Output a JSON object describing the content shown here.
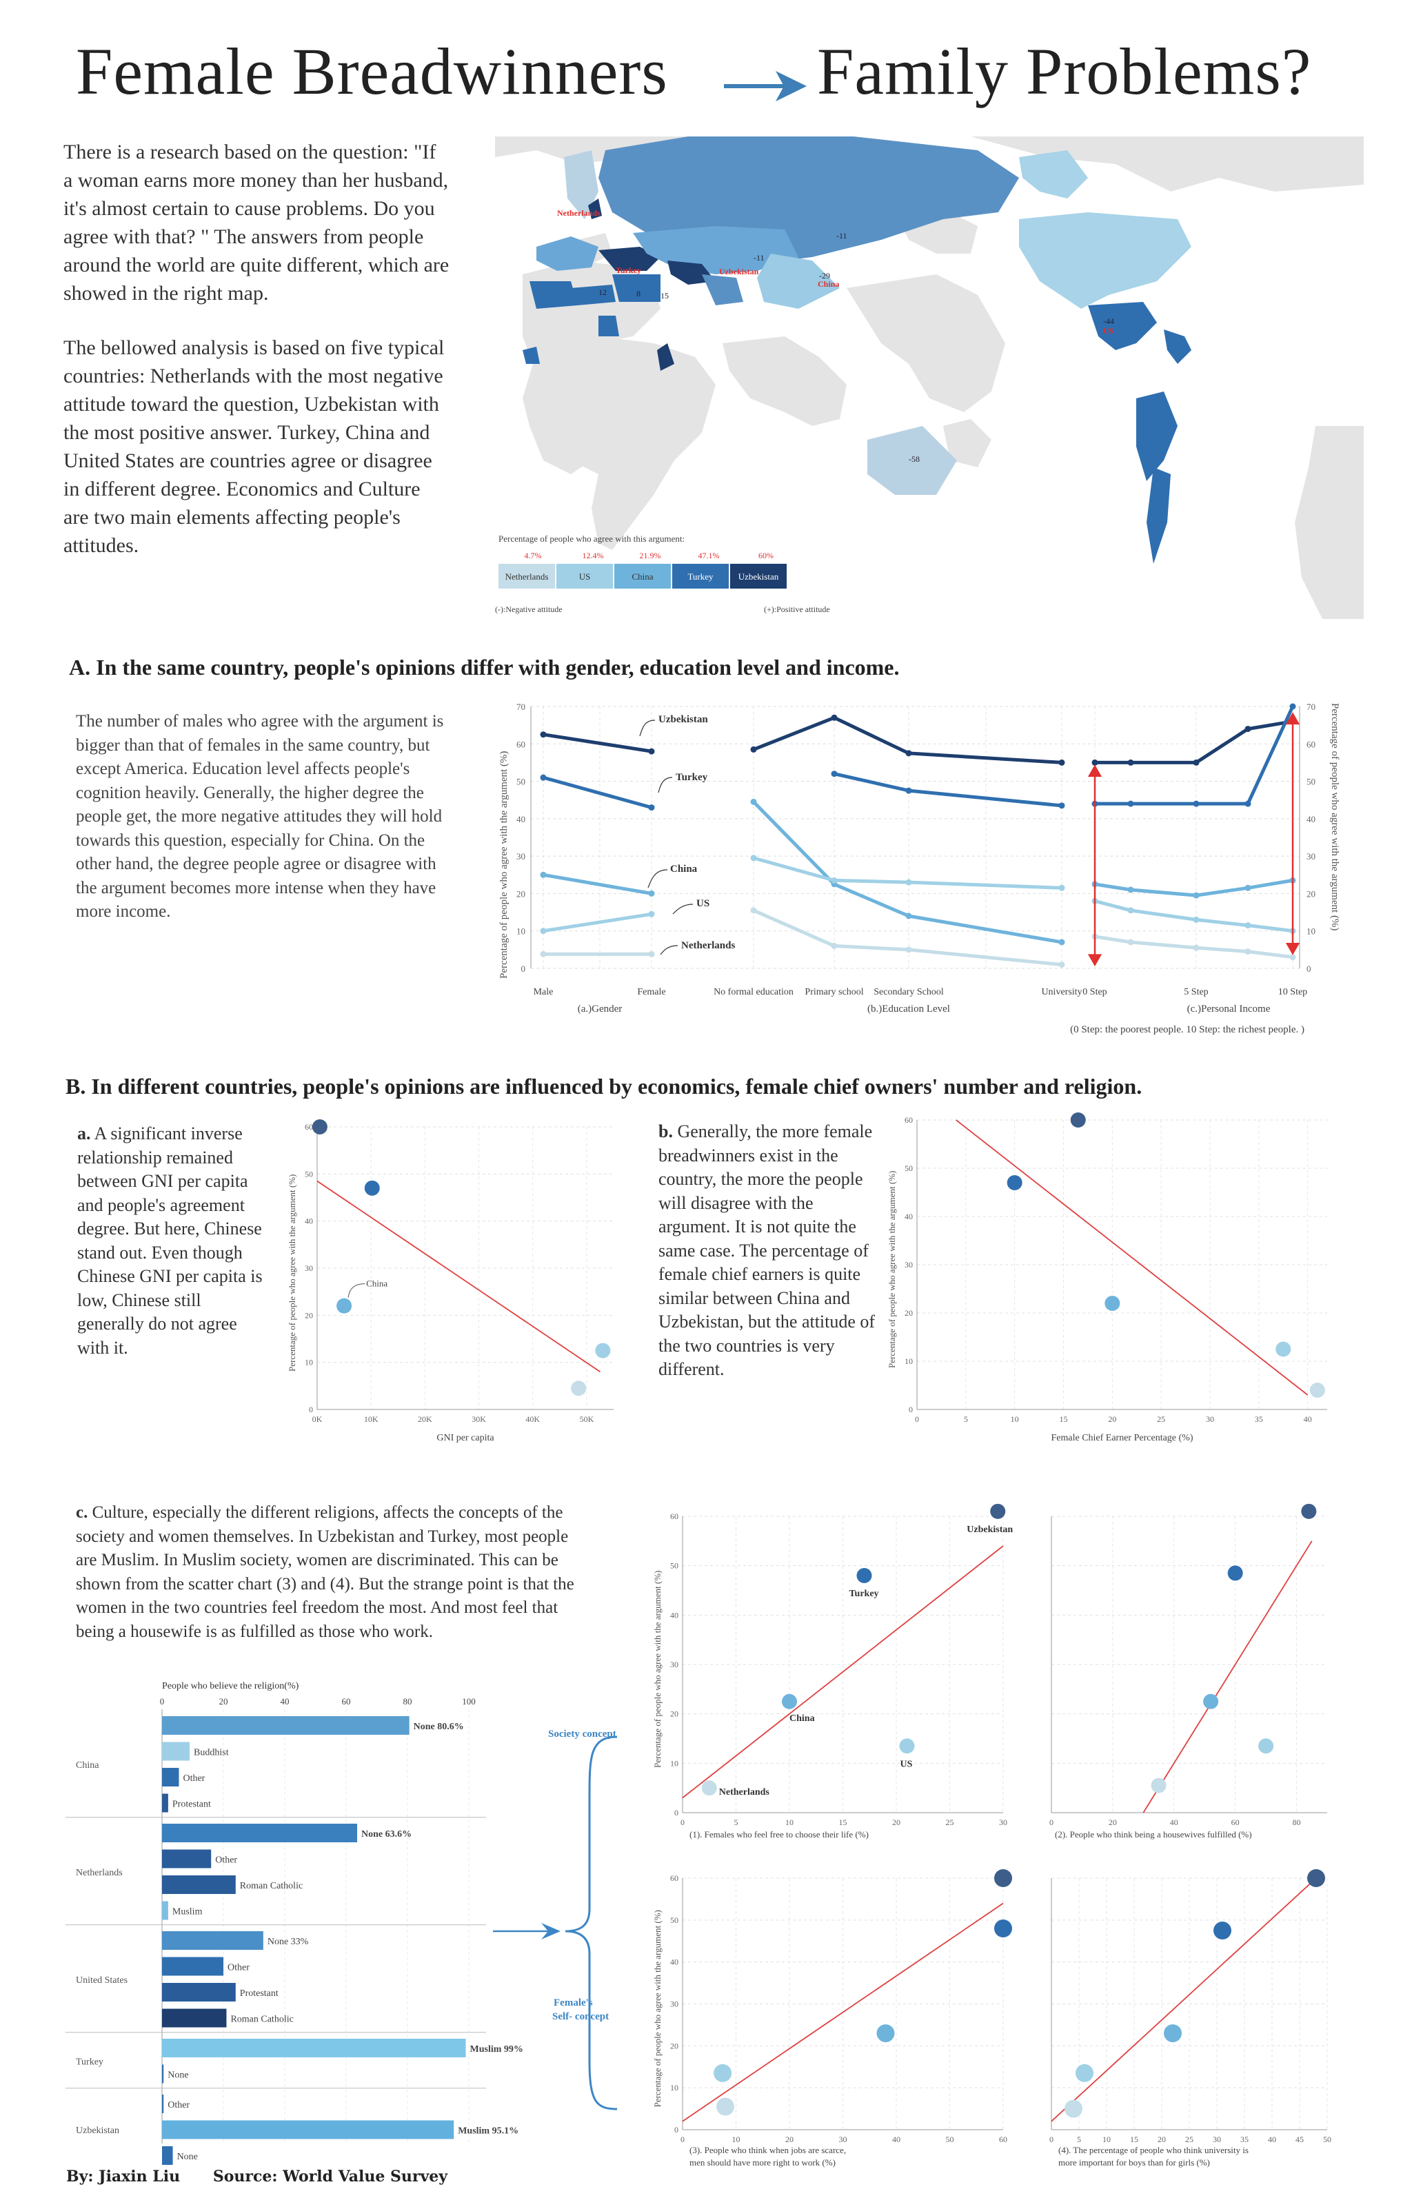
{
  "title": {
    "left": "Female Breadwinners",
    "right": "Family  Problems?"
  },
  "intro": {
    "p1": "There is a research based on the question: \"If a woman earns more money than her husband, it's almost certain to cause problems. Do you agree with that? \" The answers from people around the world are quite different, which are showed in the right map.",
    "p2": "The bellowed analysis is based on five typical countries: Netherlands with the most negative attitude toward the question, Uzbekistan with the most positive answer. Turkey, China and United States are countries agree or disagree in different degree. Economics and Culture are two main elements affecting people's attitudes."
  },
  "map": {
    "labels": [
      {
        "text": "Netherlands",
        "color": "#e03030"
      },
      {
        "text": "Turkey",
        "color": "#e03030"
      },
      {
        "text": "Uzbekistan",
        "color": "#e03030"
      },
      {
        "text": "China",
        "color": "#e03030"
      },
      {
        "text": "US",
        "color": "#e03030"
      },
      {
        "text": "-11"
      },
      {
        "text": "-11"
      },
      {
        "text": "-44"
      },
      {
        "text": "-29"
      },
      {
        "text": "12"
      },
      {
        "text": "8"
      },
      {
        "text": "15"
      },
      {
        "text": "-58"
      }
    ],
    "legend": {
      "caption": "Percentage of people who agree with this argument:",
      "ticks": [
        "4.7%",
        "12.4%",
        "21.9%",
        "47.1%",
        "60%"
      ],
      "boxes": [
        {
          "label": "Netherlands",
          "color": "#c4dde8"
        },
        {
          "label": "US",
          "color": "#9fd0e6"
        },
        {
          "label": "China",
          "color": "#6eb3dc"
        },
        {
          "label": "Turkey",
          "color": "#2f6fb0"
        },
        {
          "label": "Uzbekistan",
          "color": "#1d3e6e"
        }
      ],
      "neg": "(-):Negative attitude",
      "pos": "(+):Positive attitude"
    },
    "colors": {
      "land": "#e6e6e6",
      "ocean": "#ffffff"
    }
  },
  "sectionA": {
    "heading": "A. In the same country, people's opinions differ with  gender, education level and income.",
    "text": "The number of males who agree with the argument is bigger than that of females in the same country, but except America. Education level affects people's cognition heavily. Generally, the higher degree the people get, the more negative attitudes they will hold towards this question, especially for China. On the other hand, the degree people agree or disagree with the argument becomes more intense when they have more income.",
    "ylabel": "Percentage of people who agree with the argument (%)",
    "right_ylabel": "Percentage of people who agree with the argument (%)",
    "panel_labels": [
      "(a.)Gender",
      "(b.)Education Level",
      "(c.)Personal Income"
    ],
    "income_note": "(0 Step: the poorest people. 10 Step: the richest people. )",
    "series_labels": [
      "Uzbekistan",
      "Turkey",
      "China",
      "US",
      "Netherlands"
    ]
  },
  "sectionB": {
    "heading": "B. In different countries, people's opinions are influenced by economics, female chief owners' number and religion.",
    "a_bold": "a.",
    "a_text": " A significant inverse relationship remained between GNI per capita and people's agreement degree. But here, Chinese stand out. Even though Chinese GNI per capita is low, Chinese still generally do not agree with it.",
    "b_bold": "b.",
    "b_text": " Generally, the more female breadwinners exist in the country, the more the people will disagree with the argument. It is not quite the same case. The percentage of female chief earners is quite similar between China and Uzbekistan, but the attitude of the two countries is very different.",
    "c_bold": "c.",
    "c_text": " Culture, especially the different religions, affects the concepts of the society and women themselves.  In Uzbekistan and Turkey, most people are Muslim. In Muslim society, women are discriminated. This can be shown from the scatter chart (3) and (4). But the strange point is that the women in the two countries feel freedom the most. And most feel that being a housewife is as fulfilled as those who work.",
    "ylabel": "Percentage of people who agree with the argument (%)",
    "religion_title": "People who believe the religion(%)",
    "society_concept": "Society concept",
    "self_concept": "Female's\nSelf- concept"
  },
  "footer": {
    "author": "By: Jiaxin Liu",
    "source": "Source: World Value Survey"
  },
  "chart_data": [
    {
      "type": "line",
      "title": "(a.)Gender",
      "categories": [
        "Male",
        "Female"
      ],
      "ylim": [
        0,
        70
      ],
      "series": [
        {
          "name": "Uzbekistan",
          "color": "#1d3e6e",
          "values": [
            62.5,
            58
          ]
        },
        {
          "name": "Turkey",
          "color": "#2f6fb0",
          "values": [
            51,
            43
          ]
        },
        {
          "name": "China",
          "color": "#6eb3dc",
          "values": [
            25,
            20
          ]
        },
        {
          "name": "US",
          "color": "#9fd0e6",
          "values": [
            10,
            14.5
          ]
        },
        {
          "name": "Netherlands",
          "color": "#c4dde8",
          "values": [
            3.8,
            3.8
          ]
        }
      ]
    },
    {
      "type": "line",
      "title": "(b.)Education Level",
      "categories": [
        "No formal education",
        "Primary school",
        "Secondary School",
        "University"
      ],
      "ylim": [
        0,
        70
      ],
      "series": [
        {
          "name": "Uzbekistan",
          "color": "#1d3e6e",
          "values": [
            58.5,
            67,
            57.5,
            55
          ]
        },
        {
          "name": "Turkey",
          "color": "#2f6fb0",
          "values": [
            null,
            52,
            47.5,
            43.5
          ]
        },
        {
          "name": "China",
          "color": "#6eb3dc",
          "values": [
            44.5,
            22.5,
            14,
            7
          ]
        },
        {
          "name": "US",
          "color": "#9fd0e6",
          "values": [
            29.5,
            23.5,
            23,
            21.5
          ]
        },
        {
          "name": "Netherlands",
          "color": "#c4dde8",
          "values": [
            15.5,
            6,
            5,
            1
          ]
        }
      ]
    },
    {
      "type": "line",
      "title": "(c.)Personal Income",
      "categories": [
        "0 Step",
        "",
        "5 Step",
        "",
        "10 Step"
      ],
      "ylim": [
        0,
        70
      ],
      "series": [
        {
          "name": "Uzbekistan",
          "color": "#1d3e6e",
          "values": [
            55,
            55,
            55,
            64,
            66
          ]
        },
        {
          "name": "Turkey",
          "color": "#2f6fb0",
          "values": [
            44,
            44,
            44,
            44,
            70
          ]
        },
        {
          "name": "China",
          "color": "#6eb3dc",
          "values": [
            22.5,
            21,
            19.5,
            21.5,
            23.5
          ]
        },
        {
          "name": "US",
          "color": "#9fd0e6",
          "values": [
            18,
            15.5,
            13,
            11.5,
            10
          ]
        },
        {
          "name": "Netherlands",
          "color": "#c4dde8",
          "values": [
            8.5,
            7,
            5.5,
            4.5,
            3
          ]
        }
      ]
    },
    {
      "type": "scatter",
      "title": "a",
      "xlabel": "GNI per capita",
      "xticks": [
        "0K",
        "10K",
        "20K",
        "30K",
        "40K",
        "50K"
      ],
      "ylim": [
        0,
        60
      ],
      "xlim": [
        0,
        55000
      ],
      "points": [
        {
          "x": 500,
          "y": 60,
          "color": "#3d5e8a"
        },
        {
          "x": 10200,
          "y": 47,
          "color": "#2f6fb0"
        },
        {
          "x": 5000,
          "y": 22,
          "color": "#6eb3dc",
          "label": "China"
        },
        {
          "x": 48500,
          "y": 4.5,
          "color": "#c4dde8"
        },
        {
          "x": 53000,
          "y": 12.5,
          "color": "#9fd0e6"
        }
      ],
      "trend": [
        [
          0,
          48.5
        ],
        [
          52500,
          8
        ]
      ]
    },
    {
      "type": "scatter",
      "title": "b",
      "xlabel": "Female Chief Earner Percentage (%)",
      "xlim": [
        0,
        42
      ],
      "ylim": [
        0,
        60
      ],
      "points": [
        {
          "x": 16.5,
          "y": 60,
          "color": "#3d5e8a"
        },
        {
          "x": 10,
          "y": 47,
          "color": "#2f6fb0"
        },
        {
          "x": 20,
          "y": 22,
          "color": "#6eb3dc"
        },
        {
          "x": 37.5,
          "y": 12.5,
          "color": "#9fd0e6"
        },
        {
          "x": 41,
          "y": 4,
          "color": "#c4dde8"
        }
      ],
      "trend": [
        [
          4,
          60
        ],
        [
          40,
          3
        ]
      ]
    },
    {
      "type": "bar",
      "title": "People who believe the religion(%)",
      "xlim": [
        0,
        100
      ],
      "groups": [
        {
          "country": "China",
          "bars": [
            {
              "label": "None 80.6%",
              "value": 80.6,
              "color": "#5a9fd0",
              "bold": true
            },
            {
              "label": "Buddhist",
              "value": 9,
              "color": "#9fcfe6"
            },
            {
              "label": "Other",
              "value": 5.5,
              "color": "#2f6fb0"
            },
            {
              "label": "Protestant",
              "value": 2,
              "color": "#2a5c9a"
            }
          ]
        },
        {
          "country": "Netherlands",
          "bars": [
            {
              "label": "None 63.6%",
              "value": 63.6,
              "color": "#3a80bf",
              "bold": true
            },
            {
              "label": "Other",
              "value": 16,
              "color": "#2a5c9a"
            },
            {
              "label": "Roman Catholic",
              "value": 24,
              "color": "#2a5c9a"
            },
            {
              "label": "Muslim",
              "value": 2,
              "color": "#7fbfe3"
            }
          ]
        },
        {
          "country": "United States",
          "bars": [
            {
              "label": "None 33%",
              "value": 33,
              "color": "#4a8fc8"
            },
            {
              "label": "Other",
              "value": 20,
              "color": "#2f6fb0"
            },
            {
              "label": "Protestant",
              "value": 24,
              "color": "#2a5c9a"
            },
            {
              "label": "Roman Catholic",
              "value": 21,
              "color": "#1d3e6e"
            }
          ]
        },
        {
          "country": "Turkey",
          "bars": [
            {
              "label": "Muslim 99%",
              "value": 99,
              "color": "#7fc7e8",
              "bold": true
            },
            {
              "label": "None",
              "value": 0.5,
              "color": "#2f6fb0"
            }
          ]
        },
        {
          "country": "Uzbekistan",
          "bars": [
            {
              "label": "Other",
              "value": 0.5,
              "color": "#2f6fb0"
            },
            {
              "label": "Muslim 95.1%",
              "value": 95.1,
              "color": "#62b0de",
              "bold": true
            },
            {
              "label": "None",
              "value": 3.5,
              "color": "#2f6fb0"
            }
          ]
        }
      ]
    },
    {
      "type": "scatter",
      "title": "(1). Females who feel free to choose their life (%)",
      "xlim": [
        0,
        30
      ],
      "ylim": [
        0,
        60
      ],
      "points": [
        {
          "x": 29.5,
          "y": 61,
          "color": "#3d5e8a",
          "label": "Uzbekistan"
        },
        {
          "x": 17,
          "y": 48,
          "color": "#2f6fb0",
          "label": "Turkey"
        },
        {
          "x": 10,
          "y": 22.5,
          "color": "#6eb3dc",
          "label": "China"
        },
        {
          "x": 21,
          "y": 13.5,
          "color": "#9fd0e6",
          "label": "US"
        },
        {
          "x": 2.5,
          "y": 5,
          "color": "#c4dde8",
          "label": "Netherlands"
        }
      ],
      "trend": [
        [
          0,
          3
        ],
        [
          30,
          54
        ]
      ]
    },
    {
      "type": "scatter",
      "title": "(2). People who think being a housewives fulfilled (%)",
      "xlim": [
        0,
        90
      ],
      "ylim": [
        0,
        60
      ],
      "points": [
        {
          "x": 84,
          "y": 61,
          "color": "#3d5e8a"
        },
        {
          "x": 60,
          "y": 48.5,
          "color": "#2f6fb0"
        },
        {
          "x": 52,
          "y": 22.5,
          "color": "#6eb3dc"
        },
        {
          "x": 70,
          "y": 13.5,
          "color": "#9fd0e6"
        },
        {
          "x": 35,
          "y": 5.5,
          "color": "#c4dde8"
        }
      ],
      "trend": [
        [
          30,
          0
        ],
        [
          85,
          55
        ]
      ]
    },
    {
      "type": "scatter",
      "title": "(3). People who think when jobs are scarce, men should have more right to work (%)",
      "xlim": [
        0,
        60
      ],
      "ylim": [
        0,
        60
      ],
      "points": [
        {
          "x": 60,
          "y": 60,
          "color": "#3d5e8a"
        },
        {
          "x": 60,
          "y": 48,
          "color": "#2f6fb0"
        },
        {
          "x": 38,
          "y": 23,
          "color": "#6eb3dc"
        },
        {
          "x": 7.5,
          "y": 13.5,
          "color": "#9fd0e6"
        },
        {
          "x": 8,
          "y": 5.5,
          "color": "#c4dde8"
        }
      ],
      "trend": [
        [
          0,
          2
        ],
        [
          60,
          54
        ]
      ]
    },
    {
      "type": "scatter",
      "title": "(4). The percentage of people who think university is more important for boys than for girls (%)",
      "xlim": [
        0,
        50
      ],
      "ylim": [
        0,
        60
      ],
      "points": [
        {
          "x": 48,
          "y": 60,
          "color": "#3d5e8a"
        },
        {
          "x": 31,
          "y": 47.5,
          "color": "#2f6fb0"
        },
        {
          "x": 22,
          "y": 23,
          "color": "#6eb3dc"
        },
        {
          "x": 6,
          "y": 13.5,
          "color": "#9fd0e6"
        },
        {
          "x": 4,
          "y": 5,
          "color": "#c4dde8"
        }
      ],
      "trend": [
        [
          0,
          2
        ],
        [
          48,
          60
        ]
      ]
    }
  ]
}
